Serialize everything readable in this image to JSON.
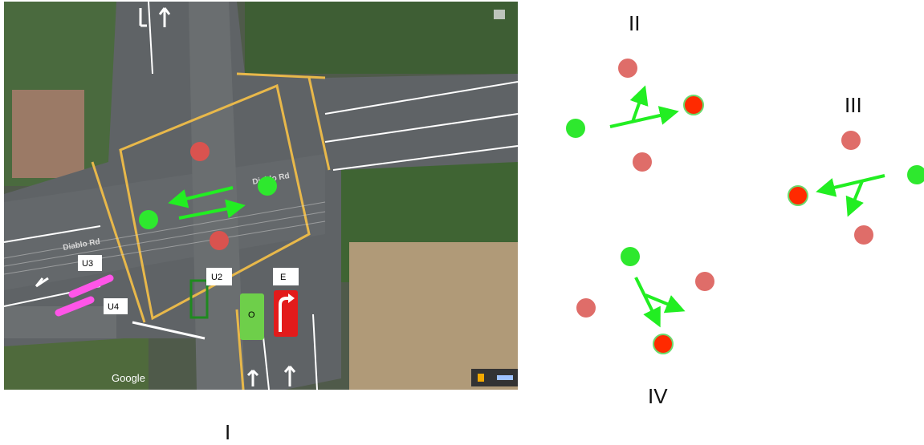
{
  "panels": {
    "map_label": "I",
    "right_labels": [
      "II",
      "III",
      "IV"
    ]
  },
  "map": {
    "street_name_1": "Diablo Rd",
    "street_name_2": "Diablo Rd",
    "watermark": "Google",
    "tags": {
      "u2": "U2",
      "u3": "U3",
      "u4": "U4",
      "e": "E",
      "o": "O"
    }
  },
  "colors": {
    "green_agent": "#2ee82e",
    "red_agent": "#d9534f",
    "red_highlight": "#ff2a00",
    "arrow": "#22ee22",
    "magenta": "#ff55e8",
    "road_line": "#e8b84a"
  }
}
